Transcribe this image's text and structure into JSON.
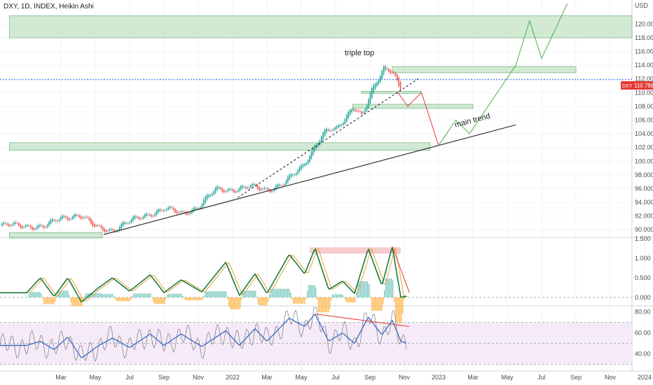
{
  "header": {
    "title": "DXY, 1D, INDEX, Heikin Ashi"
  },
  "price_panel": {
    "currency": "USD",
    "price_badge": {
      "symbol": "DXY",
      "value": "110.788"
    }
  },
  "colors": {
    "up_candle": "#26a69a",
    "down_candle": "#ef5350",
    "zone_green": "#a5d6a7",
    "zone_red": "#ef9a9a",
    "projection_green": "#4caf50",
    "projection_red": "#e53935",
    "rsi_line": "#4472c4",
    "rsi_band": "#f3e5f5",
    "wt1": "#1b7a3d",
    "wt2": "#e6a23c",
    "hist_up": "#80cbc4",
    "hist_down": "#ffb74d",
    "badge": "#e53935"
  },
  "chart_data": [
    {
      "type": "candlestick",
      "title": "DXY, 1D, INDEX, Heikin Ashi",
      "y_axis_unit": "USD",
      "ylim": [
        89,
        123
      ],
      "y_ticks": [
        "90.000",
        "92.000",
        "94.000",
        "96.000",
        "98.000",
        "100.000",
        "102.000",
        "104.000",
        "106.000",
        "108.000",
        "110.000",
        "112.000",
        "114.000",
        "116.000",
        "118.000",
        "120.000"
      ],
      "x_ticks": [
        "Mar",
        "May",
        "Jul",
        "Sep",
        "Nov",
        "2022",
        "Mar",
        "May",
        "Jul",
        "Sep",
        "Nov",
        "2023",
        "Mar",
        "May",
        "Jul",
        "Sep",
        "Nov",
        "2024"
      ],
      "x_tick_months": [
        2,
        4,
        6,
        8,
        10,
        12,
        14,
        16,
        18,
        20,
        22,
        24,
        26,
        28,
        30,
        32,
        34,
        36
      ],
      "last_price": 110.788,
      "price_path": [
        [
          0,
          90.6
        ],
        [
          1,
          90.4
        ],
        [
          2,
          91.8
        ],
        [
          3,
          92.2
        ],
        [
          4,
          90.3
        ],
        [
          5,
          90.0
        ],
        [
          6,
          91.2
        ],
        [
          7,
          92.3
        ],
        [
          8,
          93.0
        ],
        [
          9,
          92.4
        ],
        [
          10,
          93.4
        ],
        [
          11,
          95.9
        ],
        [
          12,
          95.9
        ],
        [
          13,
          96.2
        ],
        [
          14,
          95.9
        ],
        [
          15,
          96.8
        ],
        [
          16,
          99.2
        ],
        [
          17,
          103.3
        ],
        [
          17.5,
          104.5
        ],
        [
          18,
          104.5
        ],
        [
          19,
          108.2
        ],
        [
          19.5,
          106.5
        ],
        [
          20,
          109.7
        ],
        [
          20.8,
          113.8
        ],
        [
          21.3,
          113.3
        ],
        [
          21.7,
          110.6
        ]
      ],
      "annotations": [
        "triple top",
        "main trend"
      ],
      "zones": [
        {
          "y1": 118.0,
          "y2": 121.2,
          "x1": -1,
          "x2": 38,
          "color": "green"
        },
        {
          "y1": 112.9,
          "y2": 113.8,
          "x1": 21.3,
          "x2": 32,
          "color": "green"
        },
        {
          "y1": 109.9,
          "y2": 110.2,
          "x1": 19.5,
          "x2": 23,
          "color": "green"
        },
        {
          "y1": 107.7,
          "y2": 108.3,
          "x1": 19.0,
          "x2": 26.0,
          "color": "green"
        },
        {
          "y1": 101.6,
          "y2": 102.7,
          "x1": -1,
          "x2": 23.5,
          "color": "green"
        },
        {
          "y1": 88.8,
          "y2": 89.6,
          "x1": -1,
          "x2": 4.4,
          "color": "green"
        }
      ],
      "trendlines": [
        {
          "name": "main trend",
          "points": [
            [
              4.5,
              89.3
            ],
            [
              28.5,
              105.3
            ]
          ],
          "style": "solid"
        },
        {
          "name": "",
          "points": [
            [
              12.3,
              94.7
            ],
            [
              22.8,
              112.0
            ]
          ],
          "style": "dashed"
        }
      ],
      "projection_red": [
        [
          21.6,
          110.1
        ],
        [
          22.2,
          108.0
        ],
        [
          23.0,
          110.0
        ],
        [
          24.0,
          102.3
        ]
      ],
      "projection_green": [
        [
          24.0,
          102.3
        ],
        [
          25.0,
          106.0
        ],
        [
          25.8,
          104.0
        ],
        [
          28.5,
          114.0
        ],
        [
          29.3,
          120.5
        ],
        [
          30.0,
          115.0
        ],
        [
          31.5,
          123.0
        ]
      ],
      "horizontal_line": 111.9
    },
    {
      "type": "line",
      "title": "",
      "ylim": [
        -0.2,
        1.52
      ],
      "y_ticks": [
        "1.500",
        "1.000",
        "0.500",
        "0.000"
      ],
      "series": [
        {
          "points": [
            [
              0,
              0.12
            ],
            [
              0.8,
              0.5
            ],
            [
              1.6,
              0.02
            ],
            [
              2.4,
              0.5
            ],
            [
              3.2,
              -0.12
            ],
            [
              4.2,
              0.25
            ],
            [
              5.0,
              0.5
            ],
            [
              6.0,
              0.16
            ],
            [
              7.2,
              0.58
            ],
            [
              8.0,
              0.12
            ],
            [
              9.0,
              0.45
            ],
            [
              10.2,
              0.14
            ],
            [
              11.6,
              0.9
            ],
            [
              12.4,
              0.05
            ],
            [
              13.3,
              0.6
            ],
            [
              14.0,
              0.1
            ],
            [
              15.3,
              1.1
            ],
            [
              16.2,
              0.6
            ],
            [
              16.8,
              1.26
            ],
            [
              17.6,
              0.2
            ],
            [
              18.4,
              0.42
            ],
            [
              19.1,
              0.1
            ],
            [
              19.9,
              1.25
            ],
            [
              20.7,
              0.3
            ],
            [
              21.3,
              1.3
            ],
            [
              21.8,
              0.0
            ],
            [
              22.2,
              0.04
            ]
          ]
        }
      ],
      "zones": [
        {
          "y1": 1.12,
          "y2": 1.28,
          "x1": 16.5,
          "x2": 21.8,
          "color": "red"
        }
      ],
      "arrow": [
        [
          21.3,
          1.3
        ],
        [
          22.3,
          0.12
        ]
      ]
    },
    {
      "type": "line",
      "title": "",
      "ylim": [
        25,
        85
      ],
      "y_ticks": [
        "80.00",
        "60.00",
        "40.00"
      ],
      "band": [
        30,
        70
      ],
      "mid_line": 50,
      "series": [
        {
          "points": [
            [
              0,
              48
            ],
            [
              0.8,
              52
            ],
            [
              1.6,
              44
            ],
            [
              2.4,
              56
            ],
            [
              3.2,
              36
            ],
            [
              4.2,
              48
            ],
            [
              5.0,
              55
            ],
            [
              6.0,
              46
            ],
            [
              7.2,
              59
            ],
            [
              8.0,
              48
            ],
            [
              9.0,
              59
            ],
            [
              10.2,
              47
            ],
            [
              11.6,
              62
            ],
            [
              12.4,
              48
            ],
            [
              13.3,
              64
            ],
            [
              14.0,
              52
            ],
            [
              15.3,
              74
            ],
            [
              16.2,
              66
            ],
            [
              16.8,
              78
            ],
            [
              17.6,
              52
            ],
            [
              18.4,
              60
            ],
            [
              19.1,
              50
            ],
            [
              19.9,
              75
            ],
            [
              20.7,
              58
            ],
            [
              21.3,
              72
            ],
            [
              21.8,
              52
            ],
            [
              22.2,
              50
            ]
          ]
        }
      ],
      "trendline": [
        [
          16.8,
          78
        ],
        [
          22.3,
          66
        ]
      ]
    }
  ]
}
